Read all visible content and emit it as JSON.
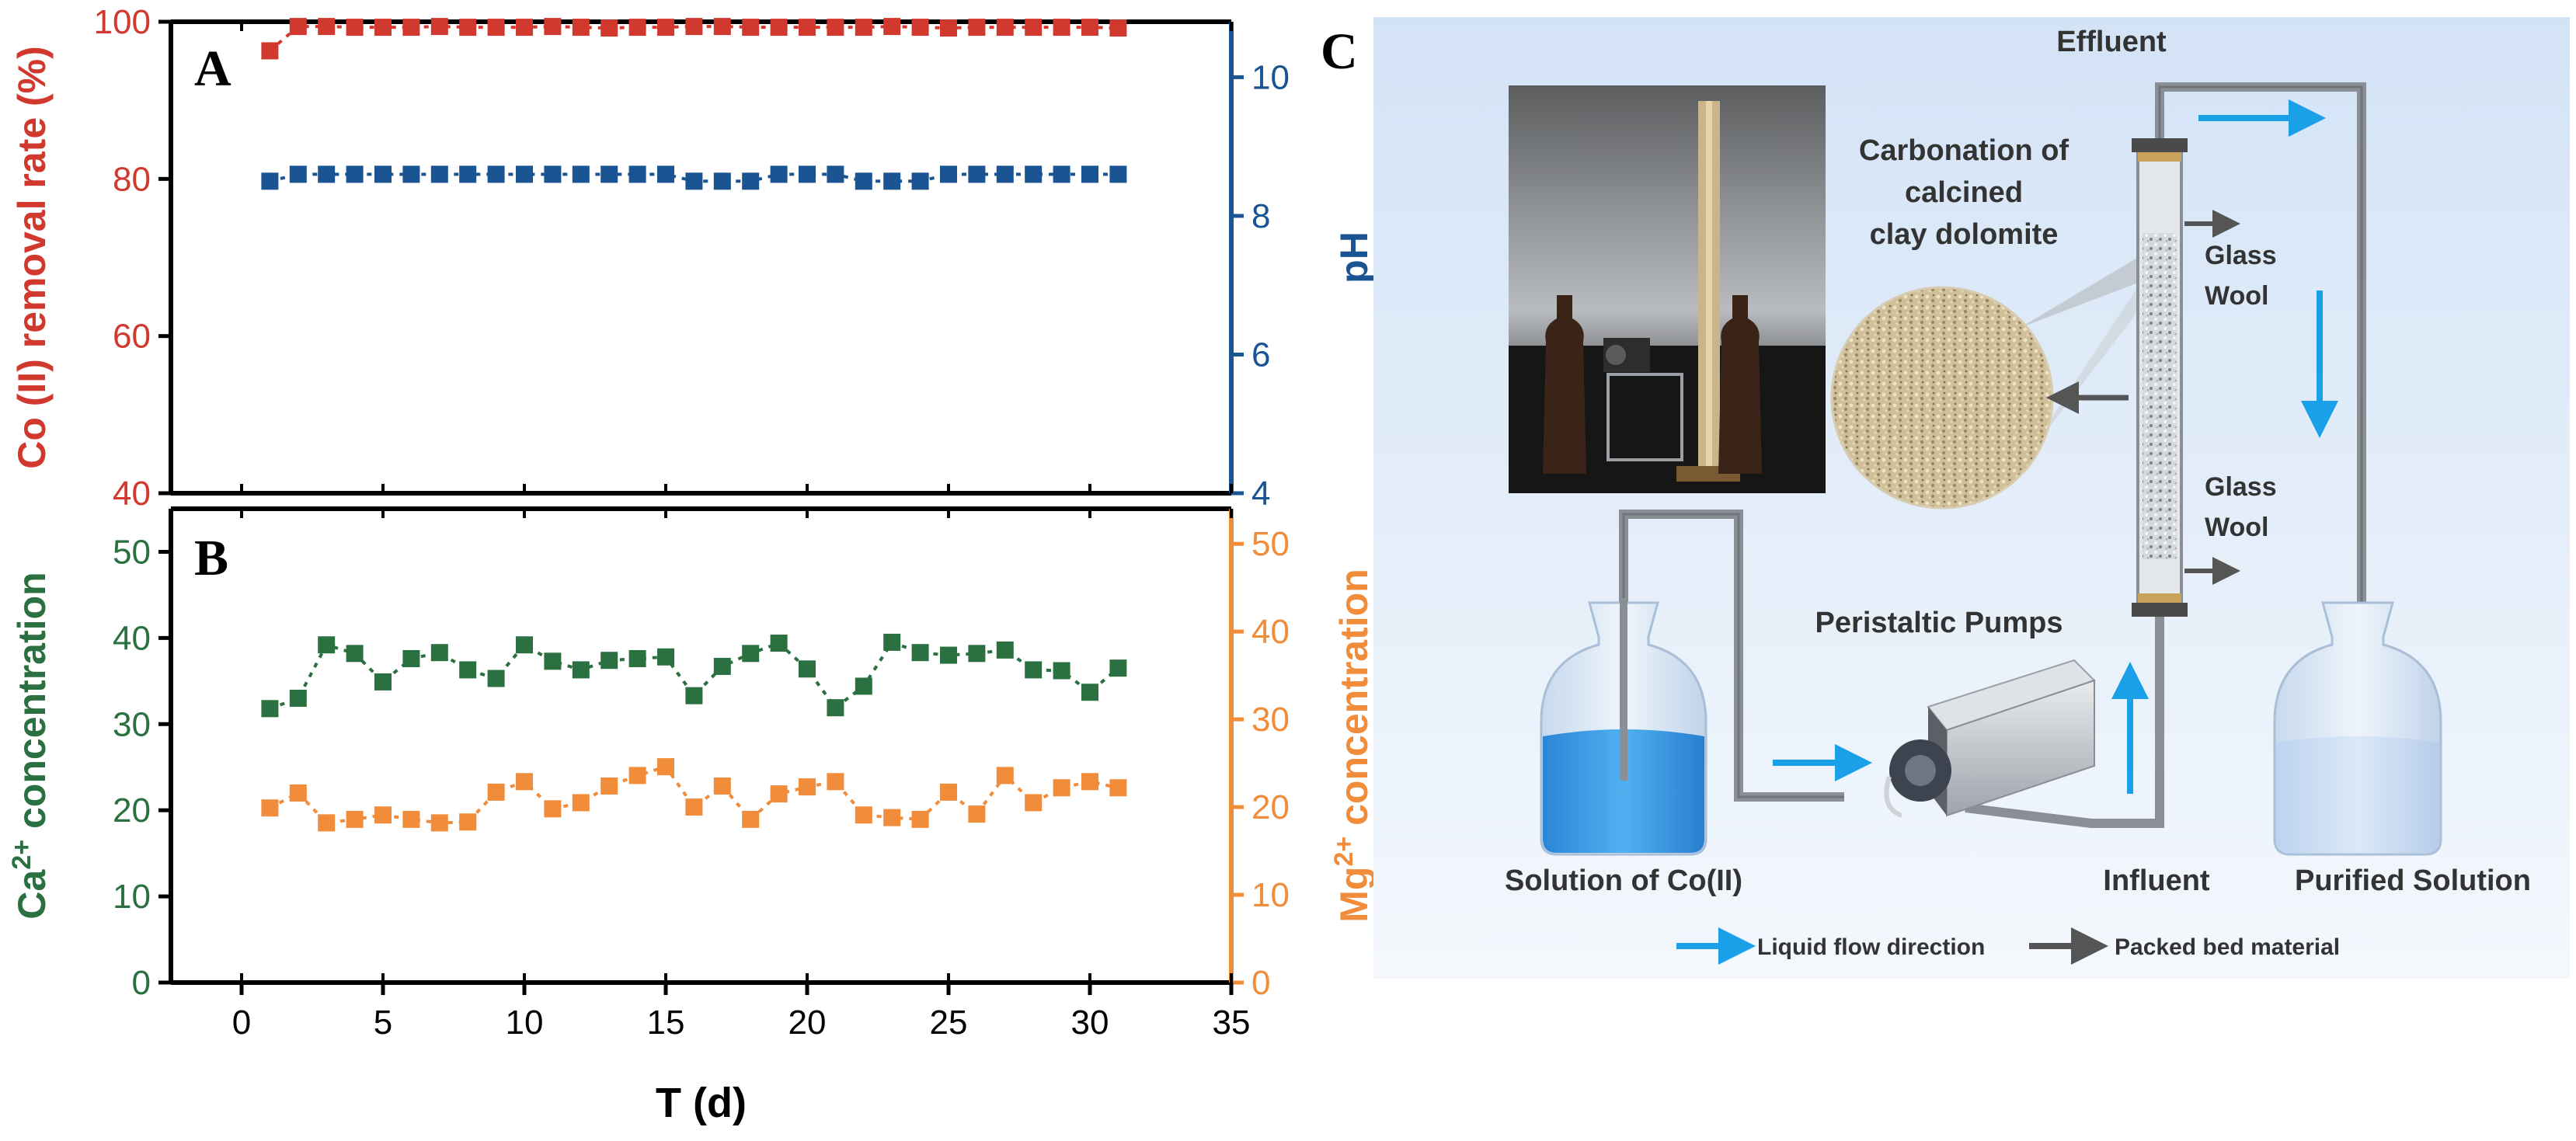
{
  "chart_data": [
    {
      "type": "scatter",
      "panel": "A",
      "xlabel": "T (d)",
      "xlim": [
        -2.5,
        35
      ],
      "xticks": [
        0,
        5,
        10,
        15,
        20,
        25,
        30,
        35
      ],
      "series": [
        {
          "name": "Co (II) removal rate (%)",
          "axis": "left",
          "ylabel": "Co (II) removal rate (%)",
          "ylim": [
            40,
            100
          ],
          "yticks": [
            40,
            60,
            80,
            100
          ],
          "color": "#d1392e",
          "x": [
            1,
            2,
            3,
            4,
            5,
            6,
            7,
            8,
            9,
            10,
            11,
            12,
            13,
            14,
            15,
            16,
            17,
            18,
            19,
            20,
            21,
            22,
            23,
            24,
            25,
            26,
            27,
            28,
            29,
            30,
            31
          ],
          "values": [
            96.3,
            99.4,
            99.4,
            99.3,
            99.3,
            99.3,
            99.4,
            99.3,
            99.3,
            99.3,
            99.4,
            99.3,
            99.2,
            99.3,
            99.3,
            99.4,
            99.4,
            99.3,
            99.3,
            99.3,
            99.3,
            99.3,
            99.4,
            99.3,
            99.2,
            99.3,
            99.3,
            99.3,
            99.3,
            99.3,
            99.2
          ]
        },
        {
          "name": "pH",
          "axis": "right",
          "ylabel": "pH",
          "ylim": [
            4,
            10.8
          ],
          "yticks": [
            4,
            6,
            8,
            10
          ],
          "color": "#1a5493",
          "x": [
            1,
            2,
            3,
            4,
            5,
            6,
            7,
            8,
            9,
            10,
            11,
            12,
            13,
            14,
            15,
            16,
            17,
            18,
            19,
            20,
            21,
            22,
            23,
            24,
            25,
            26,
            27,
            28,
            29,
            30,
            31
          ],
          "values": [
            8.5,
            8.6,
            8.6,
            8.6,
            8.6,
            8.6,
            8.6,
            8.6,
            8.6,
            8.6,
            8.6,
            8.6,
            8.6,
            8.6,
            8.6,
            8.5,
            8.5,
            8.5,
            8.6,
            8.6,
            8.6,
            8.5,
            8.5,
            8.5,
            8.6,
            8.6,
            8.6,
            8.6,
            8.6,
            8.6,
            8.6
          ]
        }
      ]
    },
    {
      "type": "line",
      "panel": "B",
      "xlabel": "T (d)",
      "xlim": [
        -2.5,
        35
      ],
      "xticks": [
        0,
        5,
        10,
        15,
        20,
        25,
        30,
        35
      ],
      "series": [
        {
          "name": "Ca2+ concentration",
          "axis": "left",
          "ylabel": "Ca2+ concentration",
          "ylim": [
            0,
            55
          ],
          "yticks": [
            0,
            10,
            20,
            30,
            40,
            50
          ],
          "color": "#2b7040",
          "x": [
            1,
            2,
            3,
            4,
            5,
            6,
            7,
            8,
            9,
            10,
            11,
            12,
            13,
            14,
            15,
            16,
            17,
            18,
            19,
            20,
            21,
            22,
            23,
            24,
            25,
            26,
            27,
            28,
            29,
            30,
            31
          ],
          "values": [
            31.8,
            33,
            39.2,
            38.2,
            34.9,
            37.6,
            38.3,
            36.3,
            35.3,
            39.2,
            37.3,
            36.3,
            37.4,
            37.6,
            37.8,
            33.3,
            36.7,
            38.2,
            39.4,
            36.4,
            31.9,
            34.4,
            39.5,
            38.3,
            38.0,
            38.2,
            38.6,
            36.3,
            36.2,
            33.7,
            36.5
          ]
        },
        {
          "name": "Mg2+ concentration",
          "axis": "right",
          "ylabel": "Mg2+ concentration",
          "ylim": [
            0,
            54
          ],
          "yticks": [
            0,
            10,
            20,
            30,
            40,
            50
          ],
          "color": "#f08c3a",
          "x": [
            1,
            2,
            3,
            4,
            5,
            6,
            7,
            8,
            9,
            10,
            11,
            12,
            13,
            14,
            15,
            16,
            17,
            18,
            19,
            20,
            21,
            22,
            23,
            24,
            25,
            26,
            27,
            28,
            29,
            30,
            31
          ],
          "values": [
            19.9,
            21.6,
            18.2,
            18.6,
            19.1,
            18.6,
            18.2,
            18.3,
            21.7,
            22.9,
            19.8,
            20.5,
            22.4,
            23.6,
            24.6,
            20.0,
            22.4,
            18.6,
            21.5,
            22.3,
            22.9,
            19.1,
            18.8,
            18.6,
            21.7,
            19.2,
            23.6,
            20.5,
            22.2,
            22.9,
            22.2
          ]
        }
      ]
    }
  ],
  "panel_labels": {
    "a": "A",
    "b": "B",
    "c": "C"
  },
  "schematic": {
    "effluent": "Effluent",
    "carbonation_line1": "Carbonation of",
    "carbonation_line2": "calcined",
    "carbonation_line3": "clay dolomite",
    "glass_wool_top_line1": "Glass",
    "glass_wool_top_line2": "Wool",
    "glass_wool_bottom_line1": "Glass",
    "glass_wool_bottom_line2": "Wool",
    "peristaltic_pumps": "Peristaltic Pumps",
    "solution": "Solution of Co(II)",
    "influent": "Influent",
    "purified": "Purified Solution",
    "legend_liquid": "Liquid flow direction",
    "legend_packed": "Packed bed material",
    "colors": {
      "background": "#dce9f8",
      "liquid_arrow": "#1aa0e8",
      "packed_arrow": "#555555",
      "pipe": "#8a8f96",
      "liquid": "#3a9fe0"
    }
  }
}
